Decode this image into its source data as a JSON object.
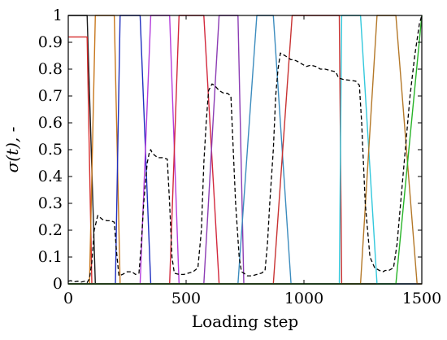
{
  "chart_data": {
    "type": "line",
    "title": "",
    "xlabel": "Loading step",
    "ylabel": "σ(t), -",
    "xlim": [
      0,
      1500
    ],
    "ylim": [
      0,
      1
    ],
    "xticks": [
      0,
      500,
      1000,
      1500
    ],
    "xtick_labels": [
      "0",
      "500",
      "1000",
      "1500"
    ],
    "yticks": [
      0,
      0.1,
      0.2,
      0.3,
      0.4,
      0.5,
      0.6,
      0.7,
      0.8,
      0.9,
      1
    ],
    "ytick_labels": [
      "0",
      "0.1",
      "0.2",
      "0.3",
      "0.4",
      "0.5",
      "0.6",
      "0.7",
      "0.8",
      "0.9",
      "1"
    ],
    "grid": false,
    "legend": "none",
    "series": [
      {
        "color": "#1a1a1a",
        "style": "solid",
        "x": [
          0,
          80,
          115,
          1500
        ],
        "y": [
          1,
          1,
          0,
          0
        ]
      },
      {
        "color": "#d62b2b",
        "style": "solid",
        "x": [
          0,
          80,
          100,
          1500
        ],
        "y": [
          0.92,
          0.92,
          0,
          0
        ]
      },
      {
        "color": "#c8781e",
        "style": "solid",
        "x": [
          0,
          90,
          115,
          195,
          220,
          1500
        ],
        "y": [
          0,
          0,
          1,
          1,
          0,
          0
        ]
      },
      {
        "color": "#1f2fbf",
        "style": "solid",
        "x": [
          0,
          200,
          220,
          305,
          350,
          1500
        ],
        "y": [
          0,
          0,
          1,
          1,
          0,
          0
        ]
      },
      {
        "color": "#b43cdc",
        "style": "solid",
        "x": [
          0,
          305,
          350,
          430,
          470,
          1500
        ],
        "y": [
          0,
          0,
          1,
          1,
          0,
          0
        ]
      },
      {
        "color": "#d2283c",
        "style": "solid",
        "x": [
          0,
          430,
          470,
          575,
          640,
          1500
        ],
        "y": [
          0,
          0,
          1,
          1,
          0,
          0
        ]
      },
      {
        "color": "#8c3cb4",
        "style": "solid",
        "x": [
          0,
          575,
          640,
          720,
          745,
          1500
        ],
        "y": [
          0,
          0,
          1,
          1,
          0,
          0
        ]
      },
      {
        "color": "#3c8cbe",
        "style": "solid",
        "x": [
          0,
          720,
          800,
          870,
          945,
          1500
        ],
        "y": [
          0,
          0,
          1,
          1,
          0,
          0
        ]
      },
      {
        "color": "#c83232",
        "style": "solid",
        "x": [
          0,
          870,
          950,
          1150,
          1160,
          1500
        ],
        "y": [
          0,
          0,
          1,
          1,
          0,
          0
        ]
      },
      {
        "color": "#32c8dc",
        "style": "solid",
        "x": [
          0,
          1150,
          1160,
          1240,
          1310,
          1500
        ],
        "y": [
          0,
          0,
          1,
          1,
          0,
          0
        ]
      },
      {
        "color": "#b47828",
        "style": "solid",
        "x": [
          0,
          1240,
          1310,
          1390,
          1480,
          1500
        ],
        "y": [
          0,
          0,
          1,
          1,
          0,
          0
        ]
      },
      {
        "color": "#28b428",
        "style": "solid",
        "x": [
          0,
          1390,
          1500
        ],
        "y": [
          0,
          0,
          1
        ]
      },
      {
        "color": "#000000",
        "style": "dashed",
        "x": [
          0,
          10,
          25,
          40,
          55,
          70,
          80,
          90,
          100,
          110,
          125,
          145,
          165,
          180,
          195,
          205,
          215,
          230,
          250,
          270,
          285,
          300,
          310,
          320,
          335,
          345,
          350,
          355,
          365,
          380,
          400,
          420,
          430,
          440,
          450,
          470,
          490,
          510,
          530,
          550,
          565,
          575,
          585,
          595,
          610,
          620,
          640,
          660,
          675,
          690,
          700,
          710,
          725,
          735,
          745,
          760,
          780,
          800,
          820,
          835,
          845,
          855,
          870,
          880,
          890,
          900,
          920,
          945,
          955,
          970,
          990,
          1010,
          1030,
          1050,
          1070,
          1090,
          1110,
          1135,
          1145,
          1150,
          1155,
          1165,
          1180,
          1200,
          1220,
          1235,
          1245,
          1260,
          1280,
          1300,
          1320,
          1335,
          1345,
          1360,
          1380,
          1395,
          1410,
          1430,
          1450,
          1470,
          1490,
          1500
        ],
        "y": [
          0.01,
          0.012,
          0.008,
          0.01,
          0.007,
          0.01,
          0.005,
          0.02,
          0.08,
          0.2,
          0.255,
          0.24,
          0.235,
          0.235,
          0.23,
          0.12,
          0.03,
          0.035,
          0.045,
          0.045,
          0.035,
          0.04,
          0.15,
          0.3,
          0.45,
          0.495,
          0.5,
          0.49,
          0.48,
          0.47,
          0.47,
          0.465,
          0.3,
          0.1,
          0.04,
          0.035,
          0.035,
          0.04,
          0.045,
          0.06,
          0.2,
          0.45,
          0.6,
          0.72,
          0.745,
          0.74,
          0.72,
          0.71,
          0.71,
          0.7,
          0.5,
          0.3,
          0.1,
          0.045,
          0.04,
          0.03,
          0.03,
          0.035,
          0.04,
          0.05,
          0.15,
          0.3,
          0.5,
          0.7,
          0.8,
          0.86,
          0.85,
          0.835,
          0.835,
          0.83,
          0.82,
          0.81,
          0.815,
          0.81,
          0.8,
          0.8,
          0.795,
          0.79,
          0.77,
          0.765,
          0.765,
          0.762,
          0.76,
          0.758,
          0.755,
          0.74,
          0.6,
          0.3,
          0.1,
          0.06,
          0.05,
          0.045,
          0.05,
          0.05,
          0.06,
          0.15,
          0.3,
          0.5,
          0.7,
          0.85,
          0.97,
          1.0
        ]
      }
    ]
  }
}
